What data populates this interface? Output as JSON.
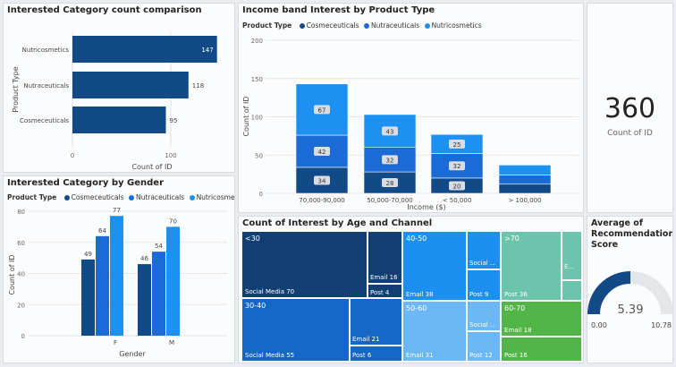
{
  "colors": {
    "cosmeceuticals": "#124a88",
    "nutraceuticals": "#1a6bd6",
    "nutricosmetics": "#1e90f2"
  },
  "bar_chart": {
    "title": "Interested Category count comparison",
    "ylabel": "Product Type",
    "xlabel": "Count of ID",
    "ticks": [
      "0",
      "100"
    ],
    "chart_data": {
      "type": "bar",
      "orientation": "horizontal",
      "categories": [
        "Nutricosmetics",
        "Nutraceuticals",
        "Cosmeceuticals"
      ],
      "values": [
        147,
        118,
        95
      ],
      "labels": [
        "147",
        "118",
        "95"
      ],
      "xlim": [
        0,
        150
      ]
    }
  },
  "income_chart": {
    "title": "Income band Interest by Product Type",
    "legend_title": "Product Type",
    "legend": [
      "Cosmeceuticals",
      "Nutraceuticals",
      "Nutricosmetics"
    ],
    "ylabel": "Count of ID",
    "xlabel": "Income ($)",
    "yticks": [
      "0",
      "50",
      "100",
      "150",
      "200"
    ],
    "chart_data": {
      "type": "bar",
      "stacked": true,
      "categories": [
        "70,000-90,000",
        "50,000-70,000",
        "< 50,000",
        "> 100,000"
      ],
      "series": [
        {
          "name": "Cosmeceuticals",
          "values": [
            34,
            28,
            20,
            12
          ],
          "labels": [
            "34",
            "28",
            "20",
            ""
          ]
        },
        {
          "name": "Nutraceuticals",
          "values": [
            42,
            32,
            32,
            12
          ],
          "labels": [
            "42",
            "32",
            "32",
            ""
          ]
        },
        {
          "name": "Nutricosmetics",
          "values": [
            67,
            43,
            25,
            13
          ],
          "labels": [
            "67",
            "43",
            "25",
            ""
          ]
        }
      ],
      "ylim": [
        0,
        200
      ]
    }
  },
  "kpi": {
    "value": "360",
    "label": "Count of ID"
  },
  "gender_chart": {
    "title": "Interested Category by Gender",
    "legend_title": "Product Type",
    "legend": [
      "Cosmeceuticals",
      "Nutraceuticals",
      "Nutricosmetics"
    ],
    "ylabel": "Count of ID",
    "xlabel": "Gender",
    "yticks": [
      "0",
      "20",
      "40",
      "60",
      "80"
    ],
    "chart_data": {
      "type": "bar",
      "categories": [
        "F",
        "M"
      ],
      "series": [
        {
          "name": "Cosmeceuticals",
          "values": [
            49,
            46
          ]
        },
        {
          "name": "Nutraceuticals",
          "values": [
            64,
            54
          ]
        },
        {
          "name": "Nutricosmetics",
          "values": [
            77,
            70
          ]
        }
      ],
      "ylim": [
        0,
        80
      ]
    }
  },
  "treemap": {
    "title": "Count of Interest by Age and Channel",
    "groups": [
      {
        "name": "<30",
        "tiles": [
          "Social Media 70",
          "Email 16",
          "Post 4"
        ]
      },
      {
        "name": "30-40",
        "tiles": [
          "Social Media 55",
          "Email 21",
          "Post 6"
        ]
      },
      {
        "name": "40-50",
        "tiles": [
          "Email 38",
          "Social ...",
          "Post 9"
        ]
      },
      {
        "name": "50-60",
        "tiles": [
          "Email 31",
          "Social ...",
          "Post 12"
        ]
      },
      {
        "name": ">70",
        "tiles": [
          "Post 36",
          "E...",
          ""
        ]
      },
      {
        "name": "60-70",
        "tiles": [
          "Email 18",
          "Post 16"
        ]
      }
    ]
  },
  "gauge": {
    "title": "Average of Recommendation Score",
    "value": "5.39",
    "min": "0.00",
    "max": "10.78",
    "fraction": 0.5
  }
}
